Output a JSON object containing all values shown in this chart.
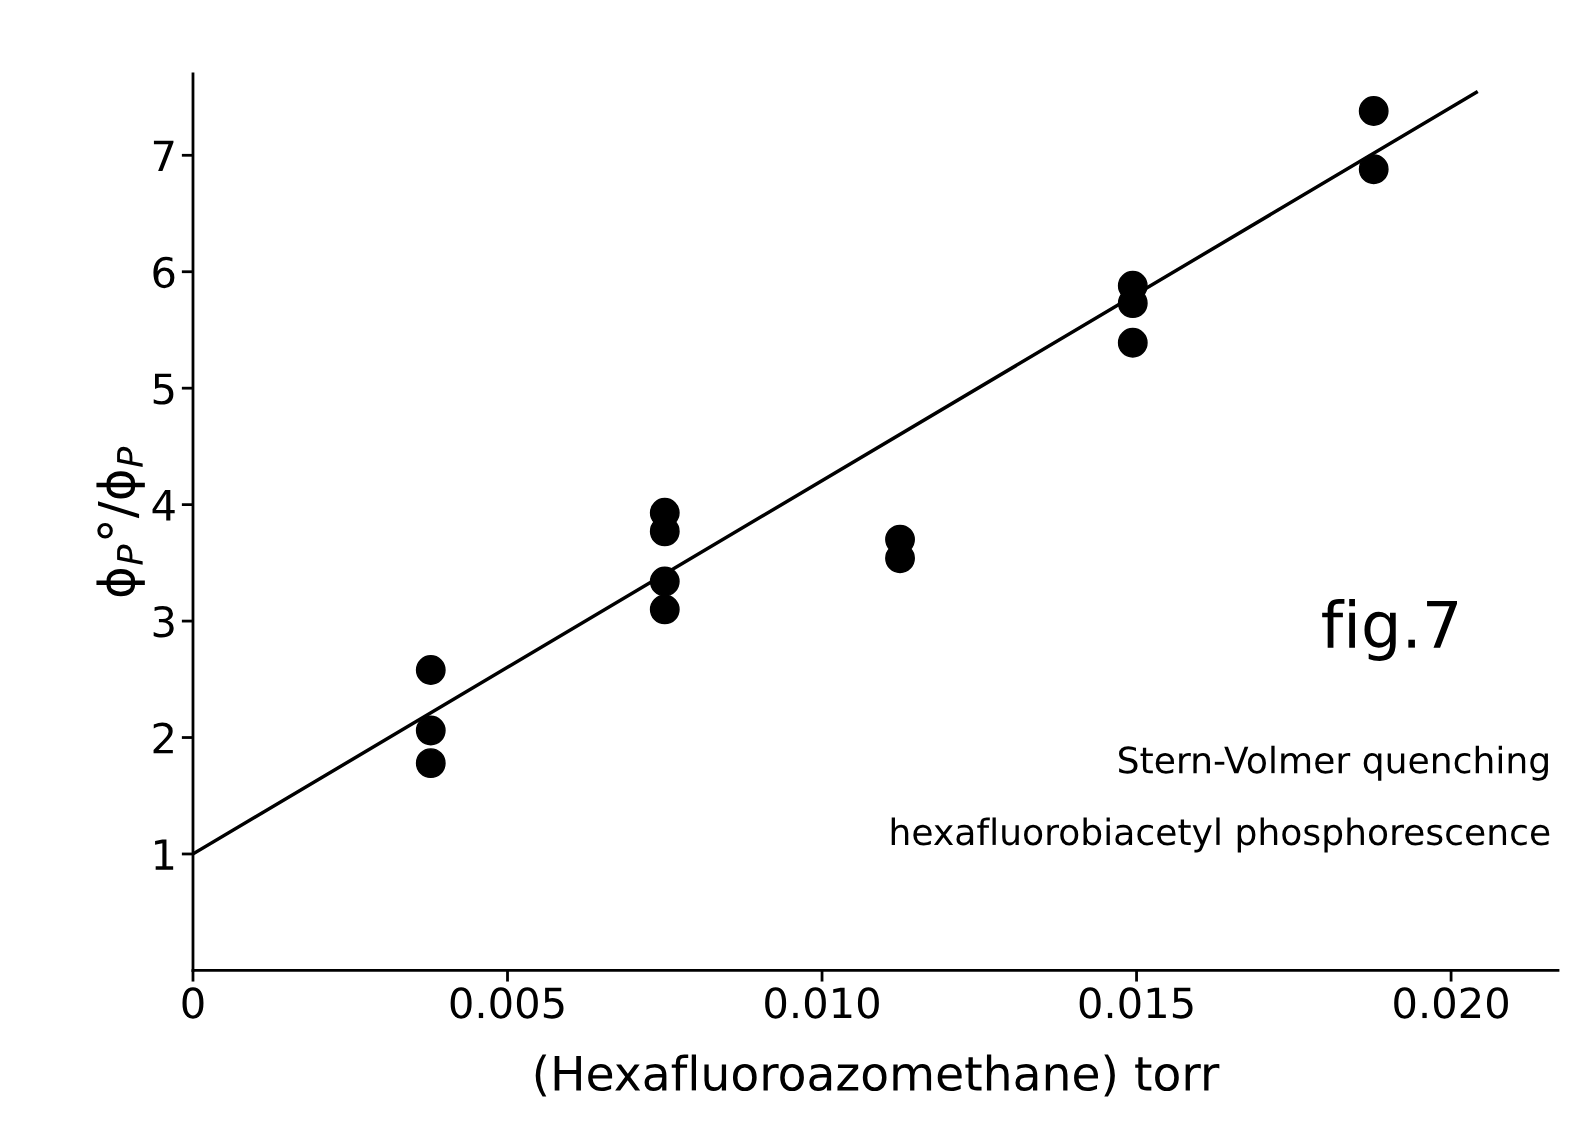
{
  "chart_data": {
    "type": "scatter",
    "xlabel": "(Hexafluoroazomethane) torr",
    "ylabel": "ϕ$_{P}$°/ϕ$_{P}$",
    "xlim": [
      0,
      0.0217
    ],
    "ylim": [
      0,
      7.7
    ],
    "xticks": [
      0,
      0.005,
      {
        "value": 0.01,
        "label": "0.010"
      },
      0.015,
      {
        "value": 0.02,
        "label": "0.020"
      }
    ],
    "yticks": [
      1,
      2,
      3,
      4,
      5,
      6,
      7
    ],
    "grid": false,
    "marker": "circle",
    "series": [
      {
        "color": "#000000",
        "x": [
          0.00378,
          0.00378,
          0.00378,
          0.0075,
          0.0075,
          0.0075,
          0.0075,
          0.01124,
          0.01124,
          0.01494,
          0.01494,
          0.01494,
          0.01877,
          0.01877
        ],
        "values": [
          2.58,
          2.06,
          1.78,
          3.93,
          3.77,
          3.34,
          3.1,
          3.7,
          3.54,
          5.88,
          5.73,
          5.39,
          7.38,
          6.88
        ]
      },
      {
        "type": "line",
        "color": "#000000",
        "line_style": "solid",
        "marker": "none",
        "x": [
          0,
          0.0204
        ],
        "values": [
          1,
          7.54
        ]
      }
    ],
    "annotations": [
      "fig.7",
      "Stern-Volmer quenching",
      "hexafluorobiacetyl phosphorescence"
    ]
  }
}
